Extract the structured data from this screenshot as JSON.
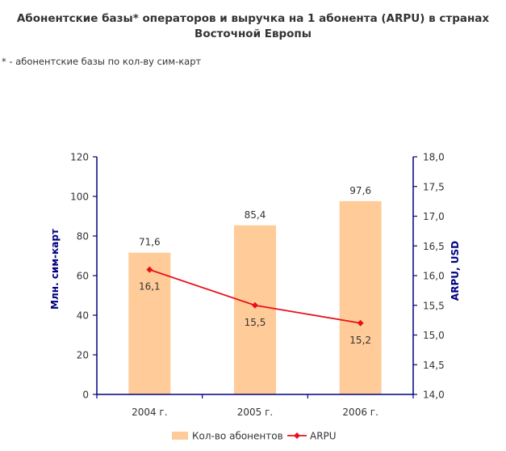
{
  "title": {
    "line1": "Абонентские базы* операторов и выручка на 1 абонента (ARPU) в странах",
    "line2": "Восточной Европы"
  },
  "footnote": "* - абонентские базы по кол-ву сим-карт",
  "colors": {
    "bar": "#FFCC99",
    "line": "#E8111B",
    "axis": "#000080",
    "text": "#333333"
  },
  "chart_data": {
    "type": "bar",
    "categories": [
      "2004 г.",
      "2005 г.",
      "2006 г."
    ],
    "series": [
      {
        "name": "Кол-во абонентов",
        "type": "bar",
        "axis": "left",
        "values": [
          71.6,
          85.4,
          97.6
        ],
        "labels": [
          "71,6",
          "85,4",
          "97,6"
        ]
      },
      {
        "name": "ARPU",
        "type": "line",
        "axis": "right",
        "values": [
          16.1,
          15.5,
          15.2
        ],
        "labels": [
          "16,1",
          "15,5",
          "15,2"
        ]
      }
    ],
    "ylabel": "Млн. сим-карт",
    "y2label": "ARPU, USD",
    "ylim": [
      0,
      120
    ],
    "y2lim": [
      14.0,
      18.0
    ],
    "yticks": [
      "0",
      "20",
      "40",
      "60",
      "80",
      "100",
      "120"
    ],
    "y2ticks": [
      "14,0",
      "14,5",
      "15,0",
      "15,5",
      "16,0",
      "16,5",
      "17,0",
      "17,5",
      "18,0"
    ],
    "legend_position": "bottom",
    "grid": false
  }
}
